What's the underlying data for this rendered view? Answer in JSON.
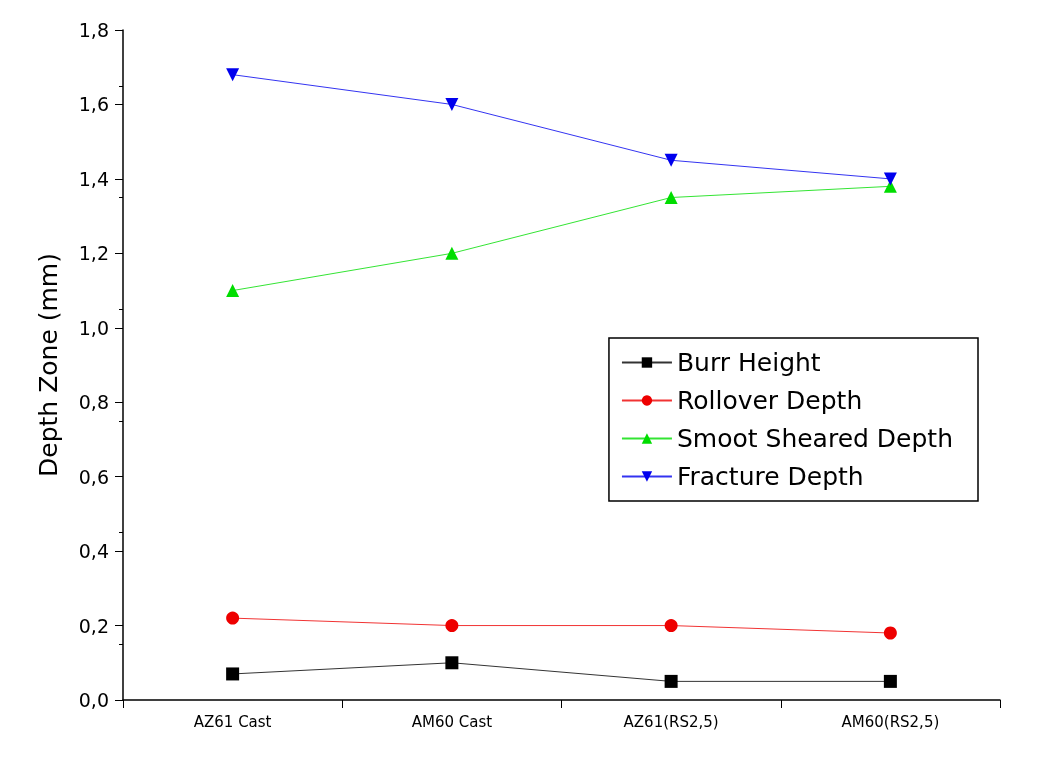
{
  "chart_data": {
    "type": "line",
    "ylabel": "Depth Zone (mm)",
    "categories": [
      "AZ61 Cast",
      "AM60 Cast",
      "AZ61(RS2,5)",
      "AM60(RS2,5)"
    ],
    "series": [
      {
        "name": "Burr Height",
        "color": "#000000",
        "marker": "square",
        "values": [
          0.07,
          0.1,
          0.05,
          0.05
        ]
      },
      {
        "name": "Rollover Depth",
        "color": "#ee0000",
        "marker": "circle",
        "values": [
          0.22,
          0.2,
          0.2,
          0.18
        ]
      },
      {
        "name": "Smoot Sheared Depth",
        "color": "#00dd00",
        "marker": "triangle",
        "values": [
          1.1,
          1.2,
          1.35,
          1.38
        ]
      },
      {
        "name": "Fracture Depth",
        "color": "#0000ee",
        "marker": "triangle-down",
        "values": [
          1.68,
          1.6,
          1.45,
          1.4
        ]
      }
    ],
    "ylim": [
      0,
      1.8
    ],
    "yticks": [
      {
        "value": 0,
        "label": "0,0"
      },
      {
        "value": 0.2,
        "label": "0,2"
      },
      {
        "value": 0.4,
        "label": "0,4"
      },
      {
        "value": 0.6,
        "label": "0,6"
      },
      {
        "value": 0.8,
        "label": "0,8"
      },
      {
        "value": 1.0,
        "label": "1,0"
      },
      {
        "value": 1.2,
        "label": "1,2"
      },
      {
        "value": 1.4,
        "label": "1,4"
      },
      {
        "value": 1.6,
        "label": "1,6"
      },
      {
        "value": 1.8,
        "label": "1,8"
      }
    ],
    "grid": false,
    "legend": "right",
    "line_style": "solid"
  }
}
